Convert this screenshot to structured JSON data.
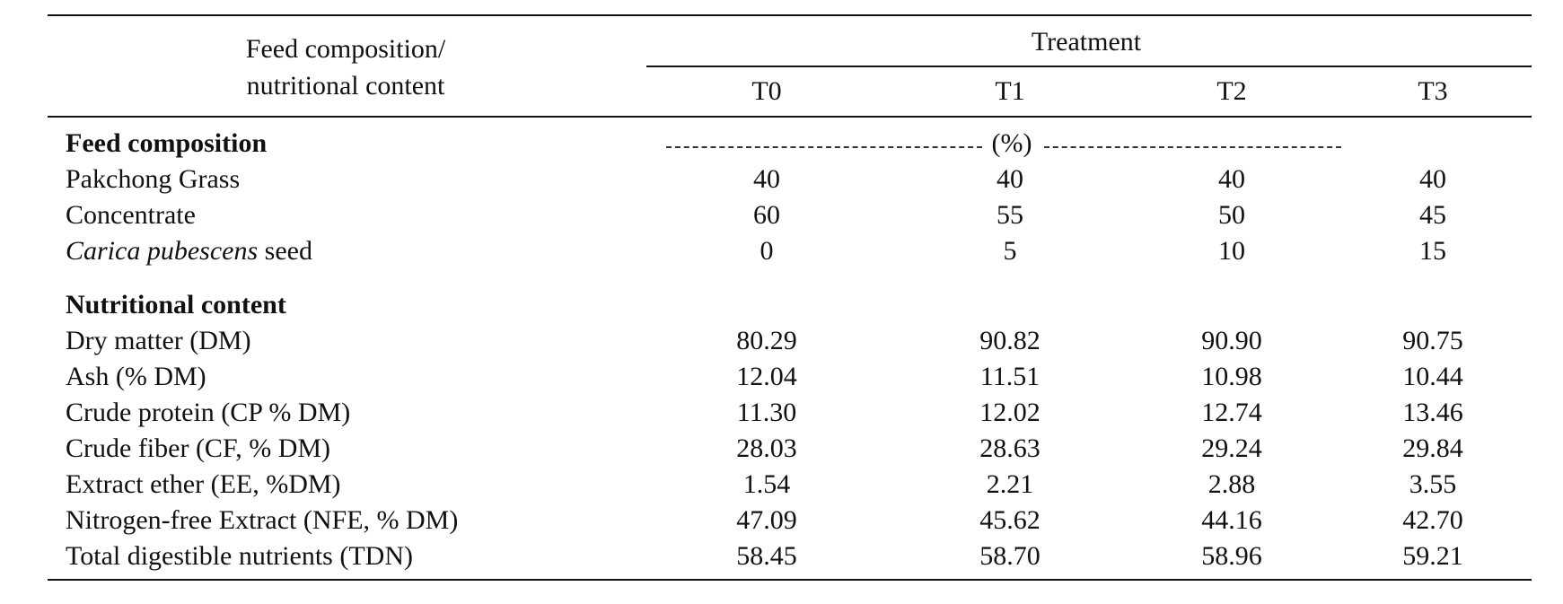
{
  "header": {
    "row_label": [
      "Feed composition/",
      "nutritional content"
    ],
    "group": "Treatment",
    "columns": [
      "T0",
      "T1",
      "T2",
      "T3"
    ]
  },
  "sections": [
    {
      "title": "Feed composition",
      "unit": "(%)",
      "rows": [
        {
          "label": "Pakchong Grass",
          "values": [
            "40",
            "40",
            "40",
            "40"
          ]
        },
        {
          "label": "Concentrate",
          "values": [
            "60",
            "55",
            "50",
            "45"
          ]
        },
        {
          "label_italic": "Carica pubescens",
          "label": "seed",
          "values": [
            "0",
            "5",
            "10",
            "15"
          ]
        }
      ]
    },
    {
      "title": "Nutritional content",
      "rows": [
        {
          "label": "Dry matter (DM)",
          "values": [
            "80.29",
            "90.82",
            "90.90",
            "90.75"
          ]
        },
        {
          "label": "Ash (% DM)",
          "values": [
            "12.04",
            "11.51",
            "10.98",
            "10.44"
          ]
        },
        {
          "label": "Crude protein (CP % DM)",
          "values": [
            "11.30",
            "12.02",
            "12.74",
            "13.46"
          ]
        },
        {
          "label": "Crude fiber (CF, % DM)",
          "values": [
            "28.03",
            "28.63",
            "29.24",
            "29.84"
          ]
        },
        {
          "label": "Extract ether (EE, %DM)",
          "values": [
            "1.54",
            "2.21",
            "2.88",
            "3.55"
          ]
        },
        {
          "label": "Nitrogen-free Extract (NFE, % DM)",
          "values": [
            "47.09",
            "45.62",
            "44.16",
            "42.70"
          ]
        },
        {
          "label": "Total digestible nutrients (TDN)",
          "values": [
            "58.45",
            "58.70",
            "58.96",
            "59.21"
          ]
        }
      ]
    }
  ]
}
